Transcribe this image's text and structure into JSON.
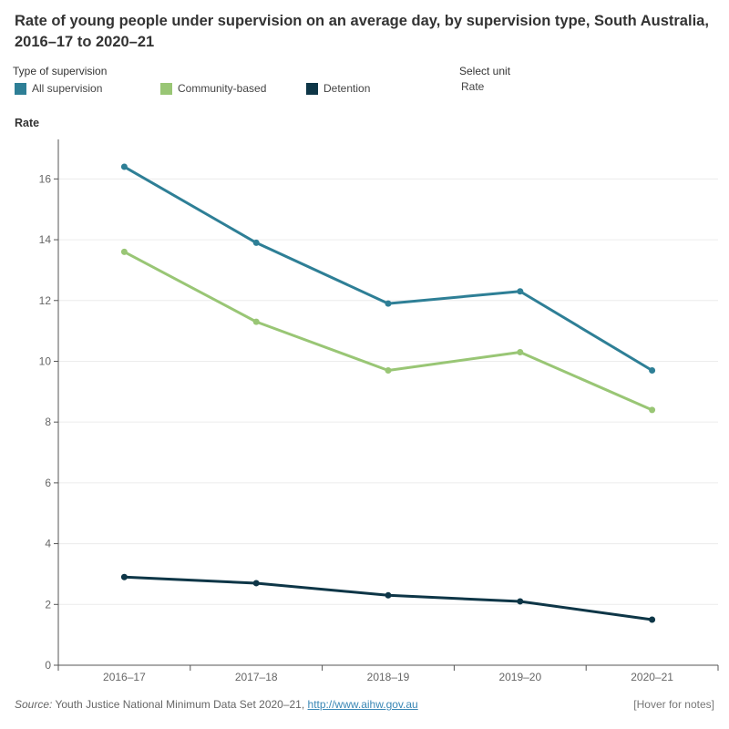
{
  "title": "Rate of young people under supervision on an average day, by supervision type, South Australia, 2016–17 to 2020–21",
  "legend": {
    "heading": "Type of supervision",
    "items": [
      {
        "label": "All supervision",
        "color": "#2e7f96"
      },
      {
        "label": "Community-based",
        "color": "#99c675"
      },
      {
        "label": "Detention",
        "color": "#0e3647"
      }
    ]
  },
  "unit_selector": {
    "label": "Select unit",
    "value": "Rate"
  },
  "footer": {
    "source_prefix": "Source:",
    "source_text": " Youth Justice National Minimum Data Set 2020–21, ",
    "source_link": "http://www.aihw.gov.au",
    "notes": "[Hover for notes]"
  },
  "chart_data": {
    "type": "line",
    "title": "Rate of young people under supervision on an average day, by supervision type, South Australia, 2016–17 to 2020–21",
    "ylabel": "Rate",
    "xlabel": "",
    "categories": [
      "2016–17",
      "2017–18",
      "2018–19",
      "2019–20",
      "2020–21"
    ],
    "ylim": [
      0,
      17.3
    ],
    "yticks": [
      0,
      2,
      4,
      6,
      8,
      10,
      12,
      14,
      16
    ],
    "grid": true,
    "legend_position": "top-left",
    "series": [
      {
        "name": "All supervision",
        "color": "#2e7f96",
        "values": [
          16.4,
          13.9,
          11.9,
          12.3,
          9.7
        ]
      },
      {
        "name": "Community-based",
        "color": "#99c675",
        "values": [
          13.6,
          11.3,
          9.7,
          10.3,
          8.4
        ]
      },
      {
        "name": "Detention",
        "color": "#0e3647",
        "values": [
          2.9,
          2.7,
          2.3,
          2.1,
          1.5
        ]
      }
    ]
  }
}
